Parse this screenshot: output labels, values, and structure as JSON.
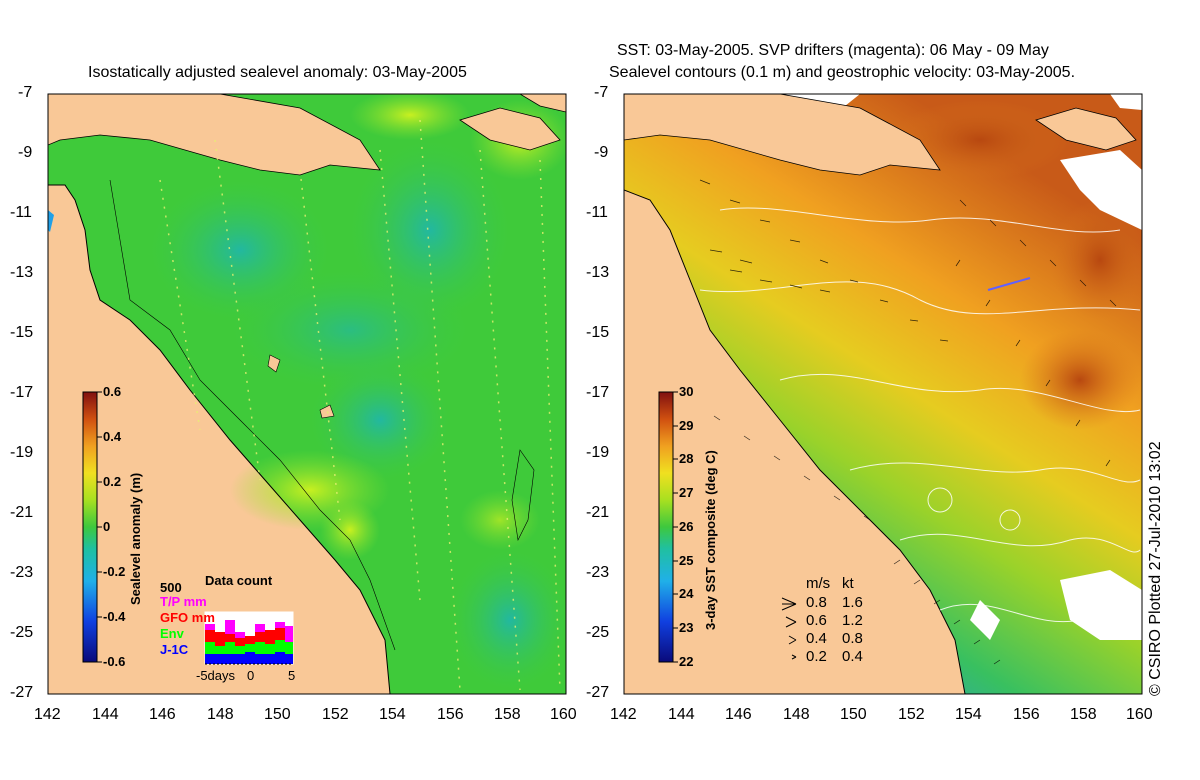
{
  "left_map": {
    "title": "Isostatically adjusted sealevel anomaly: 03-May-2005",
    "colorbar": {
      "label": "Sealevel anomaly (m)",
      "ticks": [
        "0.6",
        "0.4",
        "0.2",
        "0",
        "-0.2",
        "-0.4",
        "-0.6"
      ]
    },
    "data_count": {
      "title": "Data count",
      "scale_label": "500",
      "legend": [
        {
          "label": "T/P mm",
          "color": "#ff00ff"
        },
        {
          "label": "GFO mm",
          "color": "#ff0000"
        },
        {
          "label": "Env",
          "color": "#00ff00"
        },
        {
          "label": "J-1C",
          "color": "#0000ff"
        }
      ],
      "x_label_left": "-5days",
      "x_label_mid": "0",
      "x_label_right": "5"
    }
  },
  "right_map": {
    "title_line1": "SST: 03-May-2005. SVP drifters (magenta): 06 May - 09 May",
    "title_line2": "Sealevel contours (0.1 m) and geostrophic velocity: 03-May-2005.",
    "colorbar": {
      "label": "3-day SST composite (deg C)",
      "ticks": [
        "30",
        "29",
        "28",
        "27",
        "26",
        "25",
        "24",
        "23",
        "22"
      ]
    },
    "velocity_legend": {
      "header_ms": "m/s",
      "header_kt": "kt",
      "rows": [
        {
          "ms": "0.8",
          "kt": "1.6"
        },
        {
          "ms": "0.6",
          "kt": "1.2"
        },
        {
          "ms": "0.4",
          "kt": "0.8"
        },
        {
          "ms": "0.2",
          "kt": "0.4"
        }
      ]
    }
  },
  "axes": {
    "y_ticks": [
      "-7",
      "-9",
      "-11",
      "-13",
      "-15",
      "-17",
      "-19",
      "-21",
      "-23",
      "-25",
      "-27"
    ],
    "x_ticks": [
      "142",
      "144",
      "146",
      "148",
      "150",
      "152",
      "154",
      "156",
      "158",
      "160"
    ]
  },
  "copyright": "© CSIRO Plotted 27-Jul-2010 13:02",
  "colors": {
    "land": "#f9c897",
    "sea_anomaly_base": "#3fca3a",
    "coast": "#000000"
  }
}
